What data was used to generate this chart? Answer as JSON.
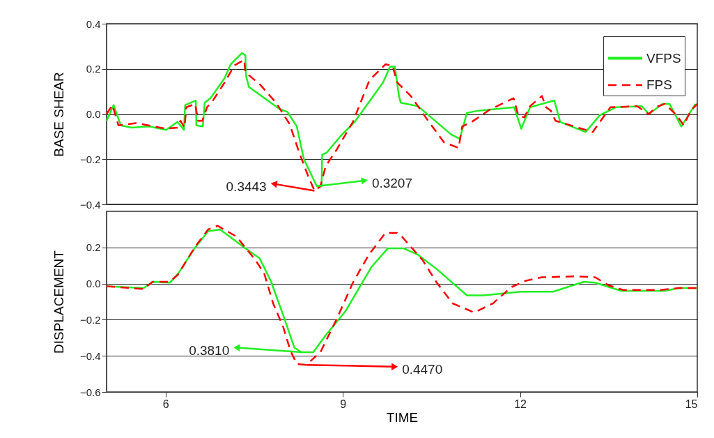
{
  "chart_data": [
    {
      "type": "line",
      "ylabel": "BASE SHEAR",
      "xlim": [
        5,
        15
      ],
      "xticks": [
        6,
        9,
        12,
        15
      ],
      "ylim": [
        -0.4,
        0.4
      ],
      "yticks": [
        -0.4,
        -0.2,
        {
          "value": 0,
          "label": "0.0"
        },
        0.2,
        0.4
      ],
      "grid": "y",
      "legend": "top right",
      "tick_labels": "y",
      "series": [
        {
          "name": "VFPS",
          "color": "#22ee22",
          "line_style": "solid",
          "x": [
            5.0,
            5.12,
            5.24,
            5.42,
            5.72,
            6.01,
            6.2,
            6.31,
            6.33,
            6.51,
            6.52,
            6.63,
            6.66,
            6.76,
            7.0,
            7.1,
            7.29,
            7.35,
            7.36,
            7.41,
            7.94,
            8.06,
            8.22,
            8.34,
            8.56,
            8.64,
            8.65,
            8.73,
            8.97,
            9.2,
            9.68,
            9.8,
            9.88,
            9.95,
            9.98,
            10.27,
            10.83,
            10.98,
            11.1,
            11.3,
            11.9,
            12.02,
            12.17,
            12.58,
            12.68,
            13.11,
            13.35,
            13.62,
            14.06,
            14.18,
            14.41,
            14.53,
            14.73,
            14.97
          ],
          "values": [
            -0.03,
            0.04,
            -0.05,
            -0.06,
            -0.055,
            -0.07,
            -0.035,
            -0.07,
            0.04,
            0.06,
            -0.05,
            -0.055,
            0.05,
            0.07,
            0.16,
            0.22,
            0.27,
            0.26,
            0.17,
            0.12,
            0.02,
            0.01,
            -0.055,
            -0.2,
            -0.32,
            -0.32,
            -0.18,
            -0.17,
            -0.095,
            -0.035,
            0.14,
            0.21,
            0.21,
            0.08,
            0.05,
            0.035,
            -0.09,
            -0.11,
            0.005,
            0.015,
            0.03,
            -0.065,
            0.03,
            0.06,
            -0.035,
            -0.08,
            -0.005,
            0.03,
            0.035,
            0,
            0.045,
            0.045,
            -0.055,
            0.045
          ]
        },
        {
          "name": "FPS",
          "color": "#ff0000",
          "line_style": "dashed",
          "x": [
            5.0,
            5.1,
            5.2,
            5.5,
            6.0,
            6.2,
            6.25,
            6.32,
            6.35,
            6.5,
            6.55,
            6.62,
            6.7,
            6.8,
            7.0,
            7.16,
            7.33,
            7.35,
            7.6,
            7.87,
            8.1,
            8.26,
            8.42,
            8.52,
            8.62,
            8.71,
            8.89,
            9.17,
            9.45,
            9.72,
            9.84,
            9.92,
            10.15,
            10.43,
            10.71,
            10.96,
            11.02,
            11.18,
            11.49,
            11.89,
            11.97,
            12.07,
            12.17,
            12.37,
            12.44,
            12.52,
            12.6,
            12.79,
            13.23,
            13.35,
            13.53,
            13.98,
            14.18,
            14.3,
            14.45,
            14.65,
            14.77,
            14.89,
            15.0
          ],
          "values": [
            0.0,
            0.04,
            -0.05,
            -0.04,
            -0.065,
            -0.06,
            -0.03,
            -0.06,
            0.03,
            0.045,
            -0.03,
            -0.03,
            0.03,
            0.06,
            0.14,
            0.215,
            0.24,
            0.185,
            0.13,
            0.05,
            -0.045,
            -0.17,
            -0.28,
            -0.34,
            -0.32,
            -0.23,
            -0.16,
            -0.035,
            0.15,
            0.22,
            0.215,
            0.14,
            0.08,
            -0.025,
            -0.125,
            -0.15,
            -0.055,
            -0.035,
            0.02,
            0.07,
            -0.005,
            -0.015,
            0.035,
            0.08,
            0.03,
            0.015,
            -0.03,
            -0.045,
            -0.08,
            -0.035,
            0.03,
            0.035,
            0,
            0.03,
            0.045,
            -0.005,
            -0.05,
            0.015,
            0.045
          ]
        }
      ],
      "annotations": [
        {
          "text": "0.3207",
          "x": 9.35,
          "y": -0.295
        },
        {
          "text": "0.3443",
          "x": 7.85,
          "y": -0.31
        }
      ]
    },
    {
      "type": "line",
      "xlabel": "TIME",
      "ylabel": "DISPLACEMENT",
      "xlim": [
        5,
        15
      ],
      "xticks": [
        6,
        9,
        12,
        15
      ],
      "ylim": [
        -0.6,
        0.4
      ],
      "yticks": [
        -0.6,
        -0.4,
        -0.2,
        {
          "value": 0,
          "label": "0.0"
        },
        0.2
      ],
      "grid": "y",
      "legend": "top right",
      "series": [
        {
          "name": "VFPS",
          "color": "#22ee22",
          "line_style": "solid",
          "x": [
            5.0,
            5.63,
            5.78,
            6.07,
            6.21,
            6.49,
            6.72,
            6.92,
            7.35,
            7.59,
            7.78,
            7.99,
            8.18,
            8.3,
            8.5,
            8.7,
            9.05,
            9.48,
            9.76,
            10.03,
            10.27,
            10.59,
            11.1,
            11.38,
            12.01,
            12.56,
            13.08,
            13.27,
            13.71,
            14.45,
            14.69,
            15.0
          ],
          "values": [
            -0.015,
            -0.025,
            0.01,
            0.005,
            0.055,
            0.195,
            0.29,
            0.3,
            0.195,
            0.14,
            0.015,
            -0.175,
            -0.355,
            -0.38,
            -0.38,
            -0.29,
            -0.15,
            0.09,
            0.195,
            0.195,
            0.16,
            0.08,
            -0.065,
            -0.065,
            -0.045,
            -0.045,
            0.01,
            0.005,
            -0.04,
            -0.04,
            -0.025,
            -0.025
          ]
        },
        {
          "name": "FPS",
          "color": "#ff0000",
          "line_style": "dashed",
          "x": [
            5.0,
            5.63,
            5.78,
            6.07,
            6.21,
            6.49,
            6.72,
            6.88,
            7.2,
            7.52,
            7.67,
            7.82,
            7.99,
            8.11,
            8.22,
            8.38,
            8.62,
            8.89,
            9.17,
            9.44,
            9.72,
            9.92,
            10.0,
            10.35,
            10.59,
            10.86,
            11.22,
            11.54,
            11.85,
            12.09,
            12.37,
            12.96,
            13.27,
            13.5,
            13.74,
            14.38,
            14.69,
            15.0
          ],
          "values": [
            -0.015,
            -0.03,
            0.01,
            0.01,
            0.05,
            0.2,
            0.3,
            0.32,
            0.26,
            0.13,
            0.055,
            -0.11,
            -0.24,
            -0.37,
            -0.445,
            -0.45,
            -0.38,
            -0.2,
            0.005,
            0.16,
            0.28,
            0.28,
            0.26,
            0.13,
            0.005,
            -0.11,
            -0.16,
            -0.11,
            -0.02,
            0.015,
            0.035,
            0.04,
            0.035,
            -0.01,
            -0.035,
            -0.035,
            -0.025,
            -0.025
          ]
        }
      ],
      "annotations": [
        {
          "text": "0.3810",
          "x": 7.22,
          "y": -0.355
        },
        {
          "text": "0.4470",
          "x": 9.86,
          "y": -0.46
        }
      ]
    }
  ]
}
